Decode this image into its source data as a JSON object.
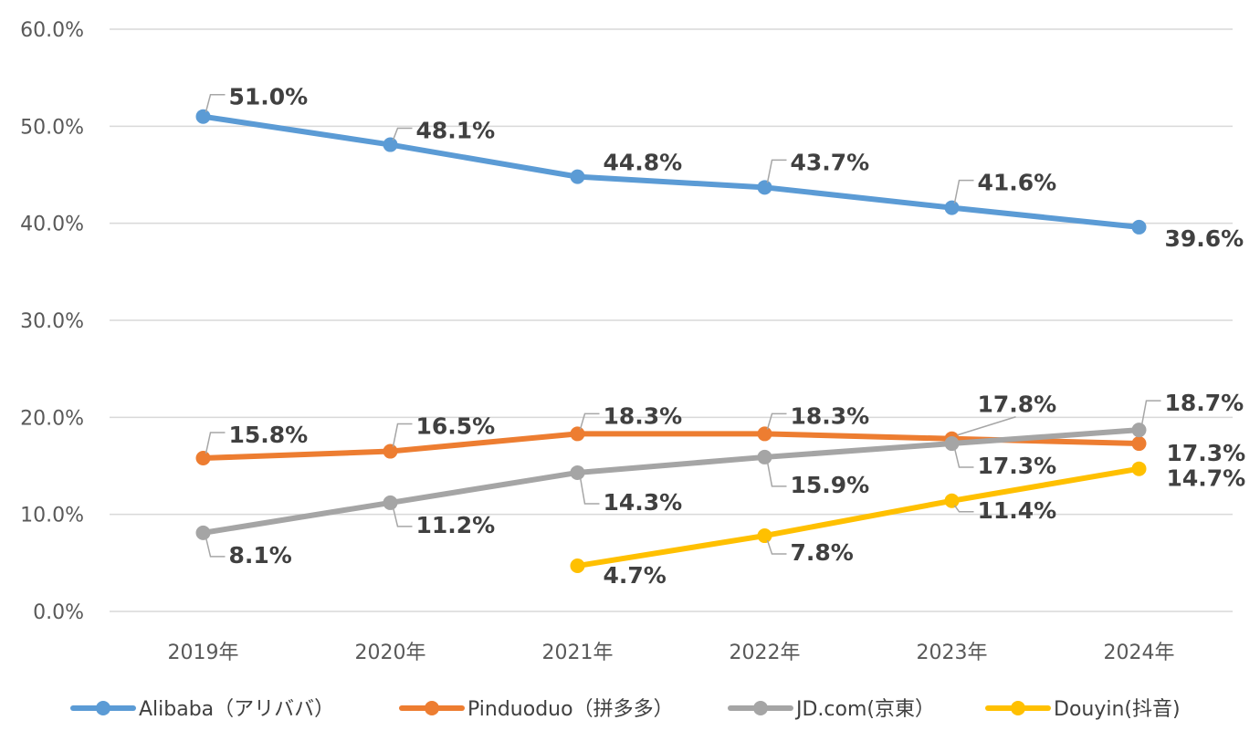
{
  "chart_data": {
    "type": "line",
    "title": "",
    "xlabel": "",
    "ylabel": "",
    "categories": [
      "2019年",
      "2020年",
      "2021年",
      "2022年",
      "2023年",
      "2024年"
    ],
    "ylim": [
      0,
      60
    ],
    "yticks": [
      "0.0%",
      "10.0%",
      "20.0%",
      "30.0%",
      "40.0%",
      "50.0%",
      "60.0%"
    ],
    "grid": true,
    "legend_position": "bottom",
    "series": [
      {
        "name": "Alibaba（アリババ）",
        "color": "#5B9BD5",
        "values": [
          51.0,
          48.1,
          44.8,
          43.7,
          41.6,
          39.6
        ],
        "labels": [
          "51.0%",
          "48.1%",
          "44.8%",
          "43.7%",
          "41.6%",
          "39.6%"
        ]
      },
      {
        "name": "Pinduoduo（拼多多）",
        "color": "#ED7D31",
        "values": [
          15.8,
          16.5,
          18.3,
          18.3,
          17.8,
          17.3
        ],
        "labels": [
          "15.8%",
          "16.5%",
          "18.3%",
          "18.3%",
          "17.8%",
          "17.3%"
        ]
      },
      {
        "name": "JD.com(京東）",
        "color": "#A5A5A5",
        "values": [
          8.1,
          11.2,
          14.3,
          15.9,
          17.3,
          18.7
        ],
        "labels": [
          "8.1%",
          "11.2%",
          "14.3%",
          "15.9%",
          "17.3%",
          "18.7%"
        ]
      },
      {
        "name": "Douyin(抖音)",
        "color": "#FFC000",
        "values": [
          null,
          null,
          4.7,
          7.8,
          11.4,
          14.7
        ],
        "labels": [
          "",
          "",
          "4.7%",
          "7.8%",
          "11.4%",
          "14.7%"
        ]
      }
    ]
  }
}
